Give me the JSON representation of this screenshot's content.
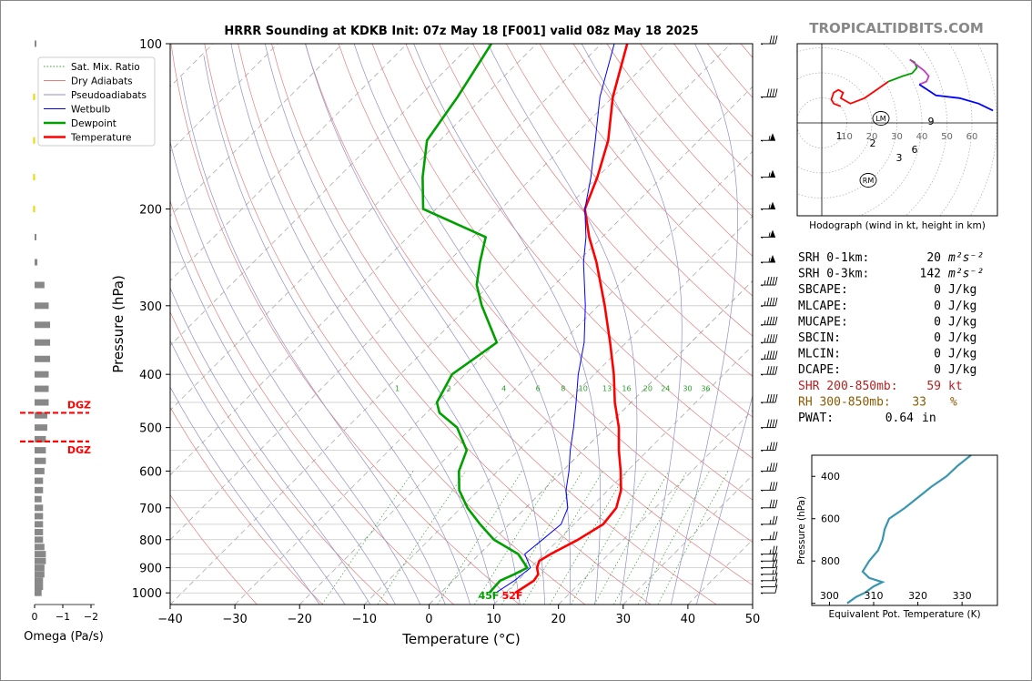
{
  "title": "HRRR Sounding at KDKB Init: 07z May 18 [F001] valid 08z May 18 2025",
  "brand": "TROPICALTIDBITS.COM",
  "chart_data": [
    {
      "type": "line",
      "name": "skewt",
      "xlabel": "Temperature (°C)",
      "ylabel": "Pressure (hPa)",
      "xlim": [
        -40,
        50
      ],
      "ylim": [
        1050,
        100
      ],
      "y_scale": "log",
      "skew_note": "skew-T log-P",
      "x_ticks": [
        -40,
        -30,
        -20,
        -10,
        0,
        10,
        20,
        30,
        40,
        50
      ],
      "y_ticks": [
        100,
        200,
        300,
        400,
        500,
        600,
        700,
        800,
        900,
        1000
      ],
      "mixing_ratio_labels": [
        "1",
        "2",
        "4",
        "6",
        "8",
        "10",
        "13",
        "16",
        "20",
        "24",
        "30",
        "36"
      ],
      "legend": {
        "position": "top-left",
        "entries": [
          {
            "label": "Sat. Mix. Ratio",
            "color": "#2ca02c",
            "style": "dotted"
          },
          {
            "label": "Dry Adiabats",
            "color": "#e08080",
            "style": "solid"
          },
          {
            "label": "Pseudoadiabats",
            "color": "#9090c8",
            "style": "solid"
          },
          {
            "label": "Wetbulb",
            "color": "#0000ff",
            "style": "solid"
          },
          {
            "label": "Dewpoint",
            "color": "#00a000",
            "style": "solid"
          },
          {
            "label": "Temperature",
            "color": "#ff0000",
            "style": "solid"
          }
        ]
      },
      "series": [
        {
          "name": "Temperature",
          "color": "#ff0000",
          "points": [
            [
              1000,
              11.5
            ],
            [
              975,
              12
            ],
            [
              950,
              12.5
            ],
            [
              925,
              12.2
            ],
            [
              900,
              11
            ],
            [
              875,
              10.3
            ],
            [
              850,
              11
            ],
            [
              800,
              13
            ],
            [
              750,
              14.5
            ],
            [
              700,
              14
            ],
            [
              650,
              12
            ],
            [
              600,
              9
            ],
            [
              550,
              5.5
            ],
            [
              500,
              2
            ],
            [
              450,
              -2.5
            ],
            [
              400,
              -7
            ],
            [
              350,
              -12.5
            ],
            [
              300,
              -19
            ],
            [
              250,
              -27
            ],
            [
              225,
              -32
            ],
            [
              200,
              -37
            ],
            [
              175,
              -40
            ],
            [
              150,
              -44
            ],
            [
              125,
              -50
            ],
            [
              100,
              -56
            ]
          ]
        },
        {
          "name": "Wetbulb",
          "color": "#0000ff",
          "points": [
            [
              1000,
              8.5
            ],
            [
              950,
              9.5
            ],
            [
              900,
              10
            ],
            [
              850,
              7
            ],
            [
              800,
              7.5
            ],
            [
              750,
              8
            ],
            [
              700,
              6.5
            ],
            [
              650,
              3.5
            ],
            [
              600,
              1
            ],
            [
              550,
              -2
            ],
            [
              500,
              -5
            ],
            [
              450,
              -8.5
            ],
            [
              400,
              -12.5
            ],
            [
              350,
              -16.5
            ],
            [
              300,
              -22
            ],
            [
              250,
              -29
            ],
            [
              225,
              -32.5
            ],
            [
              200,
              -37
            ],
            [
              175,
              -41
            ],
            [
              150,
              -46
            ],
            [
              125,
              -52
            ],
            [
              100,
              -58
            ]
          ]
        },
        {
          "name": "Dewpoint",
          "color": "#00a000",
          "points": [
            [
              1000,
              7.5
            ],
            [
              950,
              7.3
            ],
            [
              925,
              8.5
            ],
            [
              900,
              9.5
            ],
            [
              850,
              6
            ],
            [
              800,
              0
            ],
            [
              750,
              -4.5
            ],
            [
              700,
              -9
            ],
            [
              650,
              -13
            ],
            [
              600,
              -16
            ],
            [
              550,
              -18
            ],
            [
              500,
              -23
            ],
            [
              470,
              -28
            ],
            [
              450,
              -30
            ],
            [
              400,
              -32
            ],
            [
              350,
              -30
            ],
            [
              300,
              -38
            ],
            [
              275,
              -42
            ],
            [
              250,
              -45
            ],
            [
              225,
              -48
            ],
            [
              200,
              -62
            ],
            [
              175,
              -67
            ],
            [
              150,
              -72
            ],
            [
              125,
              -74
            ],
            [
              100,
              -77
            ]
          ]
        }
      ],
      "surface_labels": {
        "dewpoint": "45F",
        "temperature": "52F"
      }
    },
    {
      "type": "bar",
      "name": "omega",
      "xlabel": "Omega (Pa/s)",
      "x_ticks": [
        "0",
        "−1",
        "−2"
      ],
      "dgz_label": "DGZ",
      "dgz_pressures": [
        470,
        530
      ],
      "levels": [
        1000,
        975,
        950,
        925,
        900,
        875,
        850,
        825,
        800,
        775,
        750,
        725,
        700,
        675,
        650,
        625,
        600,
        575,
        550,
        525,
        500,
        475,
        450,
        425,
        400,
        375,
        350,
        325,
        300,
        275,
        250,
        225,
        200,
        175,
        150,
        125,
        100
      ],
      "values": [
        -0.25,
        -0.3,
        -0.3,
        -0.35,
        -0.35,
        -0.4,
        -0.4,
        -0.35,
        -0.3,
        -0.3,
        -0.3,
        -0.3,
        -0.3,
        -0.25,
        -0.3,
        -0.3,
        -0.35,
        -0.4,
        -0.4,
        -0.4,
        -0.45,
        -0.45,
        -0.5,
        -0.5,
        -0.5,
        -0.55,
        -0.55,
        -0.55,
        -0.5,
        -0.35,
        -0.1,
        -0.05,
        0.05,
        0.05,
        0.05,
        0.05,
        0.0
      ],
      "positive_color": "#e8d800",
      "negative_color": "#888888"
    },
    {
      "type": "line",
      "name": "hodograph",
      "xlabel": "Hodograph (wind in kt, height in km)",
      "ring_labels": [
        "10",
        "20",
        "30",
        "40",
        "50",
        "60"
      ],
      "storm_motion_labels": [
        "LM",
        "RM"
      ],
      "height_labels": [
        "1",
        "2",
        "3",
        "6",
        "9"
      ],
      "segments": [
        {
          "color": "#ff0000",
          "points": [
            [
              8,
              -12
            ],
            [
              5,
              -14
            ],
            [
              4,
              -17
            ],
            [
              5,
              -22
            ],
            [
              7,
              -24
            ],
            [
              9,
              -22
            ],
            [
              8,
              -18
            ],
            [
              12,
              -14
            ],
            [
              18,
              -18
            ],
            [
              23,
              -24
            ],
            [
              28,
              -30
            ]
          ]
        },
        {
          "color": "#00a000",
          "points": [
            [
              28,
              -30
            ],
            [
              34,
              -34
            ],
            [
              38,
              -36
            ],
            [
              40,
              -40
            ],
            [
              39,
              -44
            ],
            [
              37,
              -46
            ]
          ]
        },
        {
          "color": "#c040c0",
          "points": [
            [
              37,
              -46
            ],
            [
              40,
              -42
            ],
            [
              43,
              -38
            ],
            [
              45,
              -34
            ],
            [
              44,
              -30
            ],
            [
              41,
              -28
            ]
          ]
        },
        {
          "color": "#0000ff",
          "points": [
            [
              41,
              -28
            ],
            [
              48,
              -20
            ],
            [
              58,
              -18
            ],
            [
              66,
              -14
            ],
            [
              72,
              -9
            ]
          ]
        }
      ]
    },
    {
      "type": "line",
      "name": "theta-e",
      "xlabel": "Equivalent Pot. Temperature (K)",
      "ylabel": "Pressure (hPa)",
      "xlim": [
        296,
        338
      ],
      "x_ticks": [
        300,
        310,
        320,
        330
      ],
      "y_ticks": [
        400,
        600,
        800,
        1000
      ],
      "color": "#3a96b0",
      "points": [
        [
          1000,
          304
        ],
        [
          970,
          306
        ],
        [
          950,
          308
        ],
        [
          920,
          310
        ],
        [
          900,
          312
        ],
        [
          880,
          309
        ],
        [
          850,
          307.5
        ],
        [
          800,
          309
        ],
        [
          750,
          311
        ],
        [
          700,
          312
        ],
        [
          650,
          312.5
        ],
        [
          600,
          313.5
        ],
        [
          550,
          317
        ],
        [
          500,
          320
        ],
        [
          450,
          323
        ],
        [
          400,
          326.5
        ],
        [
          350,
          329
        ],
        [
          300,
          332
        ]
      ]
    }
  ],
  "stats": [
    {
      "label": "SRH 0-1km:",
      "value": "20",
      "unit": "m²s⁻²",
      "color": "#000000"
    },
    {
      "label": "SRH 0-3km:",
      "value": "142",
      "unit": "m²s⁻²",
      "color": "#000000"
    },
    {
      "label": "SBCAPE:",
      "value": "0",
      "unit": "J/kg",
      "color": "#000000"
    },
    {
      "label": "MLCAPE:",
      "value": "0",
      "unit": "J/kg",
      "color": "#000000"
    },
    {
      "label": "MUCAPE:",
      "value": "0",
      "unit": "J/kg",
      "color": "#000000"
    },
    {
      "label": "SBCIN:",
      "value": "0",
      "unit": "J/kg",
      "color": "#000000"
    },
    {
      "label": "MLCIN:",
      "value": "0",
      "unit": "J/kg",
      "color": "#000000"
    },
    {
      "label": "DCAPE:",
      "value": "0",
      "unit": "J/kg",
      "color": "#000000"
    },
    {
      "label": "SHR 200-850mb:",
      "value": "59",
      "unit": "kt",
      "color": "#b22222"
    },
    {
      "label": "RH 300-850mb:",
      "value": "33",
      "unit": "%",
      "color": "#8b5a00"
    },
    {
      "label": "PWAT:",
      "value": "0.64",
      "unit": "in",
      "color": "#000000"
    }
  ],
  "wind_barbs": [
    {
      "p": 1000,
      "speed": 10,
      "dir": 210
    },
    {
      "p": 975,
      "speed": 10,
      "dir": 220
    },
    {
      "p": 950,
      "speed": 15,
      "dir": 230
    },
    {
      "p": 925,
      "speed": 15,
      "dir": 240
    },
    {
      "p": 900,
      "speed": 20,
      "dir": 240
    },
    {
      "p": 875,
      "speed": 20,
      "dir": 245
    },
    {
      "p": 850,
      "speed": 25,
      "dir": 250
    },
    {
      "p": 800,
      "speed": 25,
      "dir": 255
    },
    {
      "p": 750,
      "speed": 25,
      "dir": 260
    },
    {
      "p": 700,
      "speed": 30,
      "dir": 260
    },
    {
      "p": 650,
      "speed": 30,
      "dir": 265
    },
    {
      "p": 600,
      "speed": 35,
      "dir": 265
    },
    {
      "p": 550,
      "speed": 35,
      "dir": 270
    },
    {
      "p": 500,
      "speed": 40,
      "dir": 270
    },
    {
      "p": 450,
      "speed": 40,
      "dir": 270
    },
    {
      "p": 400,
      "speed": 40,
      "dir": 270
    },
    {
      "p": 375,
      "speed": 45,
      "dir": 270
    },
    {
      "p": 350,
      "speed": 45,
      "dir": 270
    },
    {
      "p": 325,
      "speed": 45,
      "dir": 270
    },
    {
      "p": 300,
      "speed": 45,
      "dir": 270
    },
    {
      "p": 275,
      "speed": 45,
      "dir": 270
    },
    {
      "p": 250,
      "speed": 55,
      "dir": 270
    },
    {
      "p": 225,
      "speed": 55,
      "dir": 270
    },
    {
      "p": 200,
      "speed": 55,
      "dir": 270
    },
    {
      "p": 175,
      "speed": 55,
      "dir": 270
    },
    {
      "p": 150,
      "speed": 55,
      "dir": 270
    },
    {
      "p": 125,
      "speed": 40,
      "dir": 270
    },
    {
      "p": 100,
      "speed": 30,
      "dir": 275
    }
  ]
}
